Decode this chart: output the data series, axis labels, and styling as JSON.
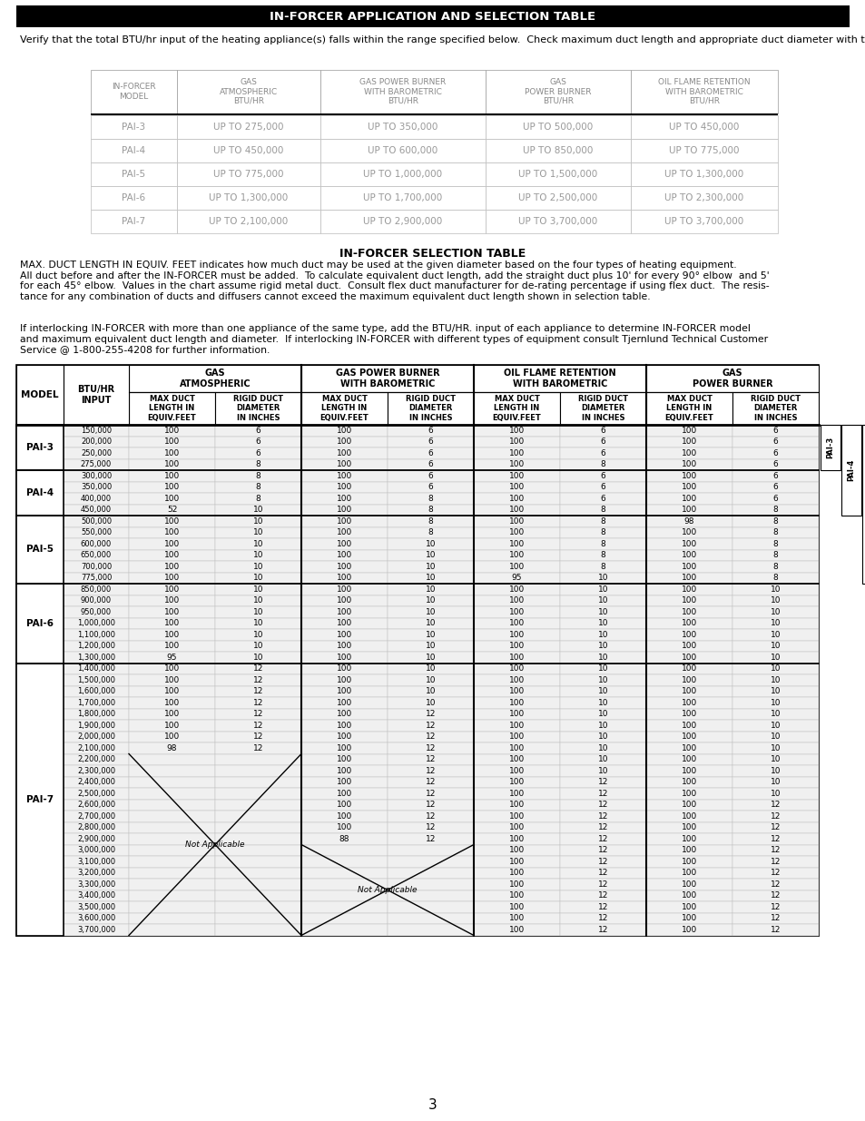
{
  "title": "IN-FORCER APPLICATION AND SELECTION TABLE",
  "intro_text": "Verify that the total BTU/hr input of the heating appliance(s) falls within the range specified below.  Check maximum duct length and appropriate duct diameter with the IN-FORCER Selection Table below.",
  "app_table_headers": [
    "IN-FORCER\nMODEL",
    "GAS\nATMOSPHERIC\nBTU/HR",
    "GAS POWER BURNER\nWITH BAROMETRIC\nBTU/HR",
    "GAS\nPOWER BURNER\nBTU/HR",
    "OIL FLAME RETENTION\nWITH BAROMETRIC\nBTU/HR"
  ],
  "app_table_data": [
    [
      "PAI-3",
      "UP TO 275,000",
      "UP TO 350,000",
      "UP TO 500,000",
      "UP TO 450,000"
    ],
    [
      "PAI-4",
      "UP TO 450,000",
      "UP TO 600,000",
      "UP TO 850,000",
      "UP TO 775,000"
    ],
    [
      "PAI-5",
      "UP TO 775,000",
      "UP TO 1,000,000",
      "UP TO 1,500,000",
      "UP TO 1,300,000"
    ],
    [
      "PAI-6",
      "UP TO 1,300,000",
      "UP TO 1,700,000",
      "UP TO 2,500,000",
      "UP TO 2,300,000"
    ],
    [
      "PAI-7",
      "UP TO 2,100,000",
      "UP TO 2,900,000",
      "UP TO 3,700,000",
      "UP TO 3,700,000"
    ]
  ],
  "selection_title": "IN-FORCER SELECTION TABLE",
  "selection_text1": "MAX. DUCT LENGTH IN EQUIV. FEET indicates how much duct may be used at the given diameter based on the four types of heating equipment.\nAll duct before and after the IN-FORCER must be added.  To calculate equivalent duct length, add the straight duct plus 10' for every 90° elbow  and 5'\nfor each 45° elbow.  Values in the chart assume rigid metal duct.  Consult flex duct manufacturer for de-rating percentage if using flex duct.  The resis-\ntance for any combination of ducts and diffusers cannot exceed the maximum equivalent duct length shown in selection table.",
  "selection_text2": "If interlocking IN-FORCER with more than one appliance of the same type, add the BTU/HR. input of each appliance to determine IN-FORCER model\nand maximum equivalent duct length and diameter.  If interlocking IN-FORCER with different types of equipment consult Tjernlund Technical Customer\nService @ 1-800-255-4208 for further information.",
  "sel_data": {
    "PAI-3": {
      "rows": [
        [
          150000,
          100,
          6,
          100,
          6,
          100,
          6,
          100,
          6
        ],
        [
          200000,
          100,
          6,
          100,
          6,
          100,
          6,
          100,
          6
        ],
        [
          250000,
          100,
          6,
          100,
          6,
          100,
          6,
          100,
          6
        ],
        [
          275000,
          100,
          8,
          100,
          6,
          100,
          8,
          100,
          6
        ]
      ]
    },
    "PAI-4": {
      "rows": [
        [
          300000,
          100,
          8,
          100,
          6,
          100,
          6,
          100,
          6
        ],
        [
          350000,
          100,
          8,
          100,
          6,
          100,
          6,
          100,
          6
        ],
        [
          400000,
          100,
          8,
          100,
          8,
          100,
          6,
          100,
          6
        ],
        [
          450000,
          52,
          10,
          100,
          8,
          100,
          8,
          100,
          8
        ]
      ]
    },
    "PAI-5": {
      "rows": [
        [
          500000,
          100,
          10,
          100,
          8,
          100,
          8,
          98,
          8
        ],
        [
          550000,
          100,
          10,
          100,
          8,
          100,
          8,
          100,
          8
        ],
        [
          600000,
          100,
          10,
          100,
          10,
          100,
          8,
          100,
          8
        ],
        [
          650000,
          100,
          10,
          100,
          10,
          100,
          8,
          100,
          8
        ],
        [
          700000,
          100,
          10,
          100,
          10,
          100,
          8,
          100,
          8
        ],
        [
          775000,
          100,
          10,
          100,
          10,
          95,
          10,
          100,
          8
        ]
      ]
    },
    "PAI-6": {
      "rows": [
        [
          850000,
          100,
          10,
          100,
          10,
          100,
          10,
          100,
          10
        ],
        [
          900000,
          100,
          10,
          100,
          10,
          100,
          10,
          100,
          10
        ],
        [
          950000,
          100,
          10,
          100,
          10,
          100,
          10,
          100,
          10
        ],
        [
          1000000,
          100,
          10,
          100,
          10,
          100,
          10,
          100,
          10
        ],
        [
          1100000,
          100,
          10,
          100,
          10,
          100,
          10,
          100,
          10
        ],
        [
          1200000,
          100,
          10,
          100,
          10,
          100,
          10,
          100,
          10
        ],
        [
          1300000,
          95,
          10,
          100,
          10,
          100,
          10,
          100,
          10
        ]
      ]
    },
    "PAI-7": {
      "rows": [
        [
          1400000,
          100,
          12,
          100,
          10,
          100,
          10,
          100,
          10
        ],
        [
          1500000,
          100,
          12,
          100,
          10,
          100,
          10,
          100,
          10
        ],
        [
          1600000,
          100,
          12,
          100,
          10,
          100,
          10,
          100,
          10
        ],
        [
          1700000,
          100,
          12,
          100,
          10,
          100,
          10,
          100,
          10
        ],
        [
          1800000,
          100,
          12,
          100,
          12,
          100,
          10,
          100,
          10
        ],
        [
          1900000,
          100,
          12,
          100,
          12,
          100,
          10,
          100,
          10
        ],
        [
          2000000,
          100,
          12,
          100,
          12,
          100,
          10,
          100,
          10
        ],
        [
          2100000,
          98,
          12,
          100,
          12,
          100,
          10,
          100,
          10
        ],
        [
          2200000,
          "",
          "",
          100,
          12,
          100,
          10,
          100,
          10
        ],
        [
          2300000,
          "",
          "",
          100,
          12,
          100,
          10,
          100,
          10
        ],
        [
          2400000,
          "",
          "",
          100,
          12,
          100,
          12,
          100,
          10
        ],
        [
          2500000,
          "",
          "",
          100,
          12,
          100,
          12,
          100,
          10
        ],
        [
          2600000,
          "",
          "",
          100,
          12,
          100,
          12,
          100,
          12
        ],
        [
          2700000,
          "",
          "",
          100,
          12,
          100,
          12,
          100,
          12
        ],
        [
          2800000,
          "",
          "",
          100,
          12,
          100,
          12,
          100,
          12
        ],
        [
          2900000,
          "",
          "",
          88,
          12,
          100,
          12,
          100,
          12
        ],
        [
          3000000,
          "",
          "",
          "",
          "",
          100,
          12,
          100,
          12
        ],
        [
          3100000,
          "",
          "",
          "",
          "",
          100,
          12,
          100,
          12
        ],
        [
          3200000,
          "",
          "",
          "",
          "",
          100,
          12,
          100,
          12
        ],
        [
          3300000,
          "",
          "",
          "",
          "",
          100,
          12,
          100,
          12
        ],
        [
          3400000,
          "",
          "",
          "",
          "",
          100,
          12,
          100,
          12
        ],
        [
          3500000,
          "",
          "",
          "",
          "",
          100,
          12,
          100,
          12
        ],
        [
          3600000,
          "",
          "",
          "",
          "",
          100,
          12,
          100,
          12
        ],
        [
          3700000,
          "",
          "",
          "",
          "",
          100,
          12,
          100,
          12
        ]
      ]
    }
  },
  "page_number": "3",
  "bg": "#ffffff",
  "header_bg": "#000000",
  "header_fg": "#ffffff"
}
